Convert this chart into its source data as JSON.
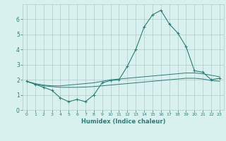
{
  "x": [
    0,
    1,
    2,
    3,
    4,
    5,
    6,
    7,
    8,
    9,
    10,
    11,
    12,
    13,
    14,
    15,
    16,
    17,
    18,
    19,
    20,
    21,
    22,
    23
  ],
  "y_main": [
    1.9,
    1.7,
    1.5,
    1.3,
    0.8,
    0.55,
    0.7,
    0.55,
    1.0,
    1.8,
    1.95,
    2.0,
    2.9,
    4.0,
    5.5,
    6.3,
    6.6,
    5.7,
    5.1,
    4.2,
    2.6,
    2.5,
    2.0,
    2.1
  ],
  "y_upper": [
    1.9,
    1.75,
    1.65,
    1.6,
    1.6,
    1.65,
    1.7,
    1.75,
    1.8,
    1.9,
    2.0,
    2.05,
    2.1,
    2.15,
    2.2,
    2.25,
    2.3,
    2.35,
    2.4,
    2.45,
    2.45,
    2.4,
    2.3,
    2.2
  ],
  "y_lower": [
    1.9,
    1.7,
    1.6,
    1.55,
    1.5,
    1.5,
    1.5,
    1.52,
    1.55,
    1.6,
    1.65,
    1.7,
    1.75,
    1.8,
    1.85,
    1.9,
    1.95,
    2.0,
    2.05,
    2.1,
    2.1,
    2.05,
    1.95,
    1.9
  ],
  "line_color": "#2d7d78",
  "bg_color": "#d8f0ee",
  "grid_color": "#b0ccc8",
  "xlabel": "Humidex (Indice chaleur)",
  "ylim": [
    0,
    7
  ],
  "xlim": [
    -0.5,
    23.5
  ],
  "yticks": [
    0,
    1,
    2,
    3,
    4,
    5,
    6
  ],
  "xticks": [
    0,
    1,
    2,
    3,
    4,
    5,
    6,
    7,
    8,
    9,
    10,
    11,
    12,
    13,
    14,
    15,
    16,
    17,
    18,
    19,
    20,
    21,
    22,
    23
  ],
  "marker": "+"
}
